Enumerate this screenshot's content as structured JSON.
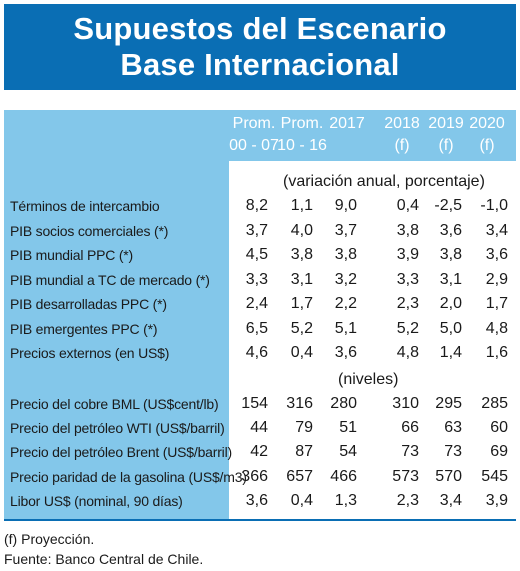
{
  "title": {
    "line1": "Supuestos del Escenario",
    "line2": "Base Internacional"
  },
  "columns": [
    {
      "top": "Prom.",
      "bottom": "00 - 07"
    },
    {
      "top": "Prom.",
      "bottom": "10 - 16"
    },
    {
      "top": "2017",
      "bottom": ""
    },
    {
      "top": "2018",
      "bottom": "(f)"
    },
    {
      "top": "2019",
      "bottom": "(f)"
    },
    {
      "top": "2020",
      "bottom": "(f)"
    }
  ],
  "section1_note": "(variación anual, porcentaje)",
  "section2_note": "(niveles)",
  "rows_section1": [
    {
      "label": "Términos de intercambio",
      "values": [
        "8,2",
        "1,1",
        "9,0",
        "0,4",
        "-2,5",
        "-1,0"
      ]
    },
    {
      "label": "PIB socios comerciales (*)",
      "values": [
        "3,7",
        "4,0",
        "3,7",
        "3,8",
        "3,6",
        "3,4"
      ]
    },
    {
      "label": "PIB mundial PPC (*)",
      "values": [
        "4,5",
        "3,8",
        "3,8",
        "3,9",
        "3,8",
        "3,6"
      ]
    },
    {
      "label": "PIB mundial a TC de mercado (*)",
      "values": [
        "3,3",
        "3,1",
        "3,2",
        "3,3",
        "3,1",
        "2,9"
      ]
    },
    {
      "label": "PIB desarrolladas PPC (*)",
      "values": [
        "2,4",
        "1,7",
        "2,2",
        "2,3",
        "2,0",
        "1,7"
      ]
    },
    {
      "label": "PIB emergentes PPC (*)",
      "values": [
        "6,5",
        "5,2",
        "5,1",
        "5,2",
        "5,0",
        "4,8"
      ]
    },
    {
      "label": "Precios externos (en US$)",
      "values": [
        "4,6",
        "0,4",
        "3,6",
        "4,8",
        "1,4",
        "1,6"
      ]
    }
  ],
  "rows_section2": [
    {
      "label": "Precio del cobre BML (US$cent/lb)",
      "values": [
        "154",
        "316",
        "280",
        "310",
        "295",
        "285"
      ]
    },
    {
      "label": "Precio del petróleo WTI (US$/barril)",
      "values": [
        "44",
        "79",
        "51",
        "66",
        "63",
        "60"
      ]
    },
    {
      "label": "Precio del petróleo Brent (US$/barril)",
      "values": [
        "42",
        "87",
        "54",
        "73",
        "73",
        "69"
      ]
    },
    {
      "label": "Precio paridad de la gasolina (US$/m3)",
      "values": [
        "366",
        "657",
        "466",
        "573",
        "570",
        "545"
      ]
    },
    {
      "label": "Libor US$ (nominal, 90 días)",
      "values": [
        "3,6",
        "0,4",
        "1,3",
        "2,3",
        "3,4",
        "3,9"
      ]
    }
  ],
  "footnotes": {
    "note1": "(f) Proyección.",
    "note2": "Fuente: Banco Central de Chile."
  },
  "colors": {
    "title_bg": "#0a6eb4",
    "header_bg": "#83c7ea"
  }
}
